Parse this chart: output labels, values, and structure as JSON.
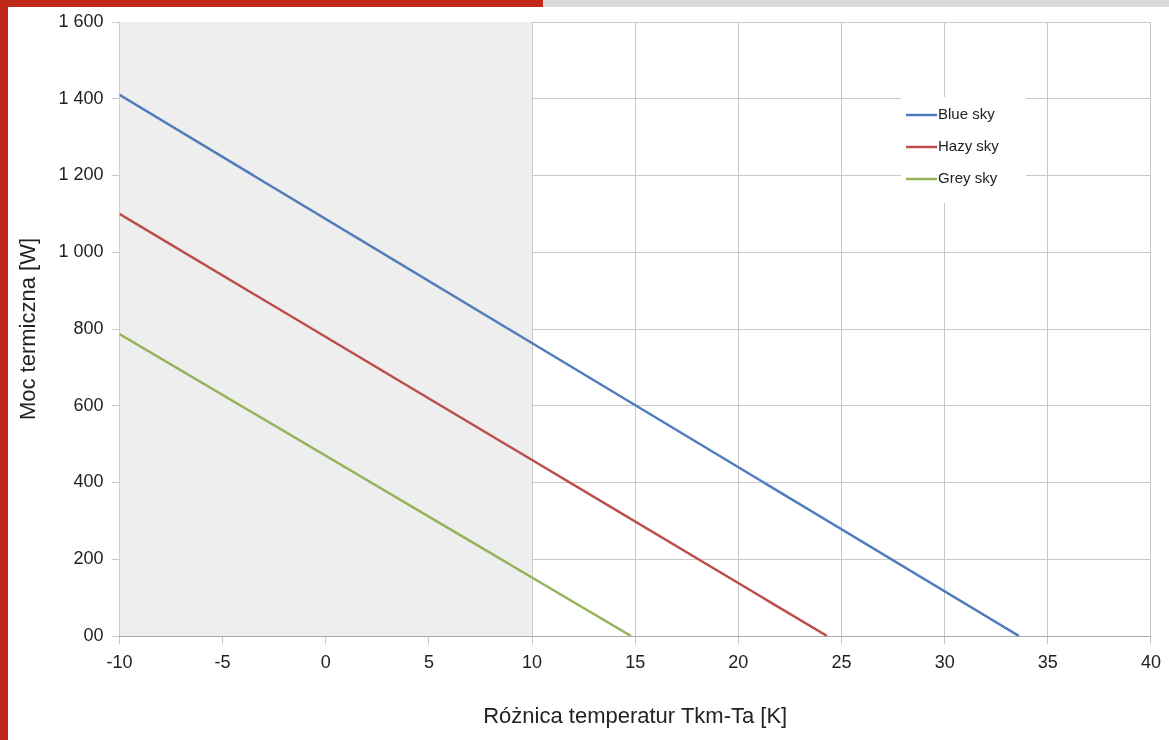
{
  "chart_data": {
    "type": "line",
    "xlabel": "Różnica temperatur Tkm-Ta [K]",
    "ylabel": "Moc termiczna [W]",
    "series": [
      {
        "name": "Blue sky",
        "color": "#4f7cba",
        "x": [
          -10,
          33.6
        ],
        "values": [
          1410,
          0
        ]
      },
      {
        "name": "Hazy sky",
        "color": "#bb4d4a",
        "x": [
          -10,
          24.3
        ],
        "values": [
          1100,
          0
        ]
      },
      {
        "name": "Grey sky",
        "color": "#93b35a",
        "x": [
          -10,
          14.8
        ],
        "values": [
          787,
          0
        ]
      }
    ],
    "xlim": [
      -10,
      40
    ],
    "xticks": [
      -10,
      -5,
      0,
      5,
      10,
      15,
      20,
      25,
      30,
      35,
      40
    ],
    "ylim": [
      0,
      1600
    ],
    "yticks": [
      {
        "value": 0,
        "label": "00"
      },
      200,
      400,
      600,
      800,
      {
        "value": 1000,
        "label": "1 000"
      },
      {
        "value": 1200,
        "label": "1 200"
      },
      {
        "value": 1400,
        "label": "1 400"
      },
      {
        "value": 1600,
        "label": "1 600"
      }
    ],
    "bands": [
      {
        "axis": "x",
        "from": -10,
        "to": 10,
        "color": "#eeeeee"
      }
    ],
    "grid": true,
    "legend": "top right",
    "marker": "none",
    "line_style": "solid"
  }
}
